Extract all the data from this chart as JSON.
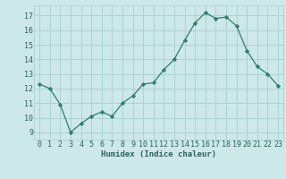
{
  "x": [
    0,
    1,
    2,
    3,
    4,
    5,
    6,
    7,
    8,
    9,
    10,
    11,
    12,
    13,
    14,
    15,
    16,
    17,
    18,
    19,
    20,
    21,
    22,
    23
  ],
  "y": [
    12.3,
    12.0,
    10.9,
    9.0,
    9.6,
    10.1,
    10.4,
    10.1,
    11.0,
    11.5,
    12.3,
    12.4,
    13.3,
    14.0,
    15.3,
    16.5,
    17.2,
    16.8,
    16.9,
    16.3,
    14.6,
    13.5,
    13.0,
    12.2
  ],
  "line_color": "#2e7d6e",
  "marker": "D",
  "marker_size": 2.2,
  "bg_color": "#cde8e8",
  "grid_color": "#aacece",
  "xlabel": "Humidex (Indice chaleur)",
  "ylim": [
    8.5,
    17.7
  ],
  "xlim": [
    -0.5,
    23.5
  ],
  "yticks": [
    9,
    10,
    11,
    12,
    13,
    14,
    15,
    16,
    17
  ],
  "xticks": [
    0,
    1,
    2,
    3,
    4,
    5,
    6,
    7,
    8,
    9,
    10,
    11,
    12,
    13,
    14,
    15,
    16,
    17,
    18,
    19,
    20,
    21,
    22,
    23
  ],
  "xlabel_color": "#2e6060",
  "tick_color": "#2e6060",
  "label_fontsize": 6.5,
  "tick_fontsize": 6.0
}
